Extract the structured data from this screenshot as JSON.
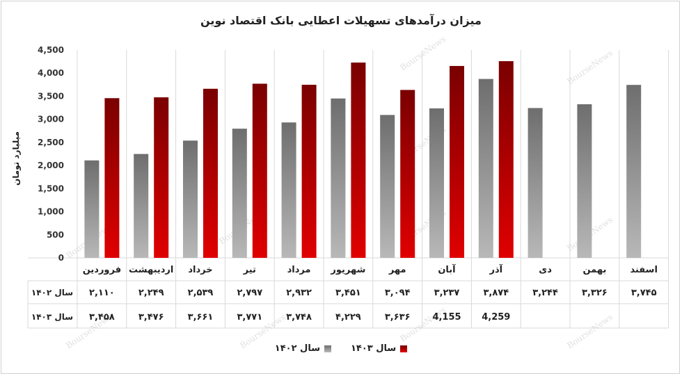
{
  "chart_data": {
    "type": "bar",
    "title": "میزان درآمدهای تسهیلات اعطایی بانک اقتصاد نوین",
    "ylabel": "میلیارد تومان",
    "ylim": [
      0,
      4500
    ],
    "yticks": [
      0,
      500,
      1000,
      1500,
      2000,
      2500,
      3000,
      3500,
      4000,
      4500
    ],
    "ytick_labels": [
      "0",
      "500",
      "1,000",
      "1,500",
      "2,000",
      "2,500",
      "3,000",
      "3,500",
      "4,000",
      "4,500"
    ],
    "categories": [
      "فروردین",
      "اردیبهشت",
      "خرداد",
      "تیر",
      "مرداد",
      "شهریور",
      "مهر",
      "آبان",
      "آذر",
      "دی",
      "بهمن",
      "اسفند"
    ],
    "series": [
      {
        "name": "سال ۱۴۰۲",
        "color": "#7a7a7a",
        "values": [
          2110,
          2249,
          2539,
          2797,
          2932,
          3451,
          3094,
          3237,
          3874,
          3244,
          3326,
          3745
        ],
        "labels": [
          "۲,۱۱۰",
          "۲,۲۴۹",
          "۲,۵۳۹",
          "۲,۷۹۷",
          "۲,۹۳۲",
          "۳,۴۵۱",
          "۳,۰۹۴",
          "۳,۲۳۷",
          "۳,۸۷۴",
          "۳,۲۴۴",
          "۳,۳۲۶",
          "۳,۷۴۵"
        ]
      },
      {
        "name": "سال ۱۴۰۳",
        "color": "#b00000",
        "values": [
          3458,
          3476,
          3661,
          3771,
          3748,
          4229,
          3636,
          4155,
          4259,
          null,
          null,
          null
        ],
        "labels": [
          "۳,۴۵۸",
          "۳,۴۷۶",
          "۳,۶۶۱",
          "۳,۷۷۱",
          "۳,۷۴۸",
          "۴,۲۲۹",
          "۳,۶۳۶",
          "4,155",
          "4,259",
          "",
          "",
          ""
        ]
      }
    ],
    "legend": "bottom",
    "grid": "vertical category dividers",
    "watermark": "BourseNews"
  }
}
